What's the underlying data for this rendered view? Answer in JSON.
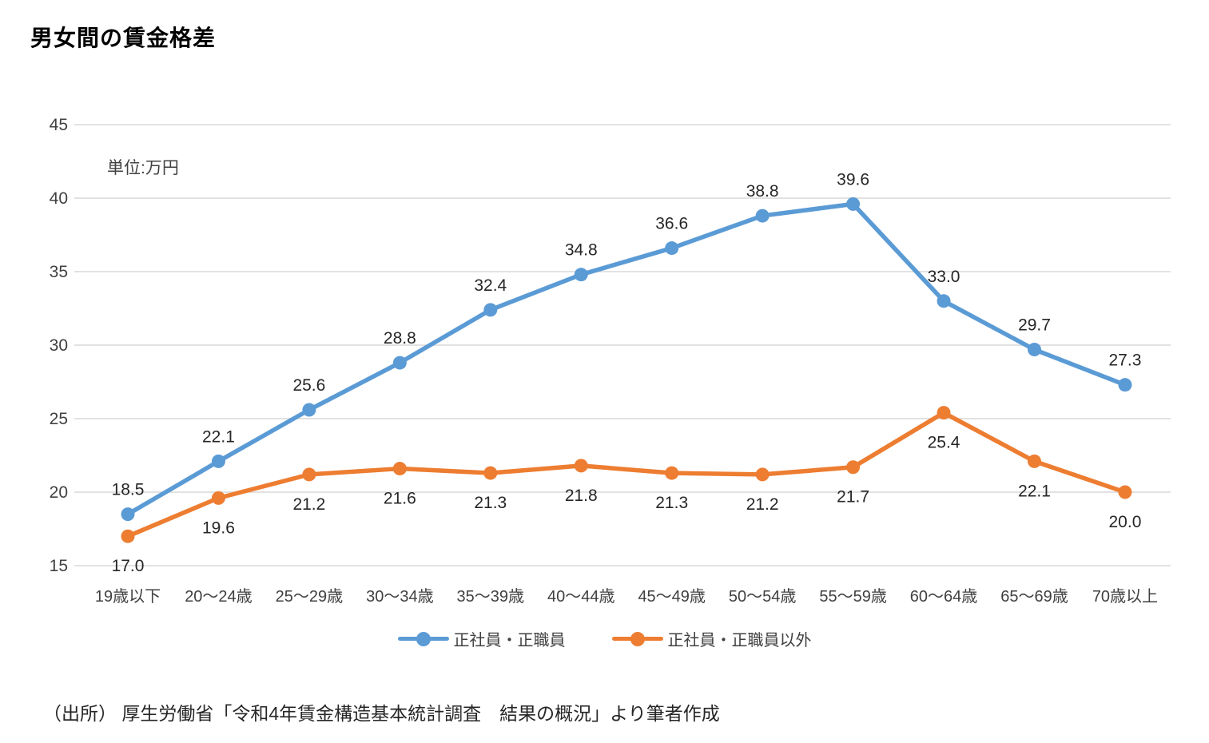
{
  "title": "男女間の賃金格差",
  "unit_label": "単位:万円",
  "source": "（出所） 厚生労働省「令和4年賃金構造基本統計調査　結果の概況」より筆者作成",
  "colors": {
    "series_regular": "#5B9BD5",
    "series_non_regular": "#ED7D31",
    "grid": "#D9D9D9",
    "axis_text": "#404040",
    "data_label": "#262626"
  },
  "chart_data": {
    "type": "line",
    "title": "男女間の賃金格差",
    "unit": "万円",
    "categories": [
      "19歳以下",
      "20〜24歳",
      "25〜29歳",
      "30〜34歳",
      "35〜39歳",
      "40〜44歳",
      "45〜49歳",
      "50〜54歳",
      "55〜59歳",
      "60〜64歳",
      "65〜69歳",
      "70歳以上"
    ],
    "series": [
      {
        "name": "正社員・正職員",
        "color": "#5B9BD5",
        "label_position": "above",
        "values": [
          18.5,
          22.1,
          25.6,
          28.8,
          32.4,
          34.8,
          36.6,
          38.8,
          39.6,
          33.0,
          29.7,
          27.3
        ]
      },
      {
        "name": "正社員・正職員以外",
        "color": "#ED7D31",
        "label_position": "below",
        "values": [
          17.0,
          19.6,
          21.2,
          21.6,
          21.3,
          21.8,
          21.3,
          21.2,
          21.7,
          25.4,
          22.1,
          20.0
        ]
      }
    ],
    "ylim": [
      15,
      45
    ],
    "ytick_step": 5,
    "grid": true,
    "legend_position": "bottom",
    "xlabel": "",
    "ylabel": "単位:万円"
  }
}
